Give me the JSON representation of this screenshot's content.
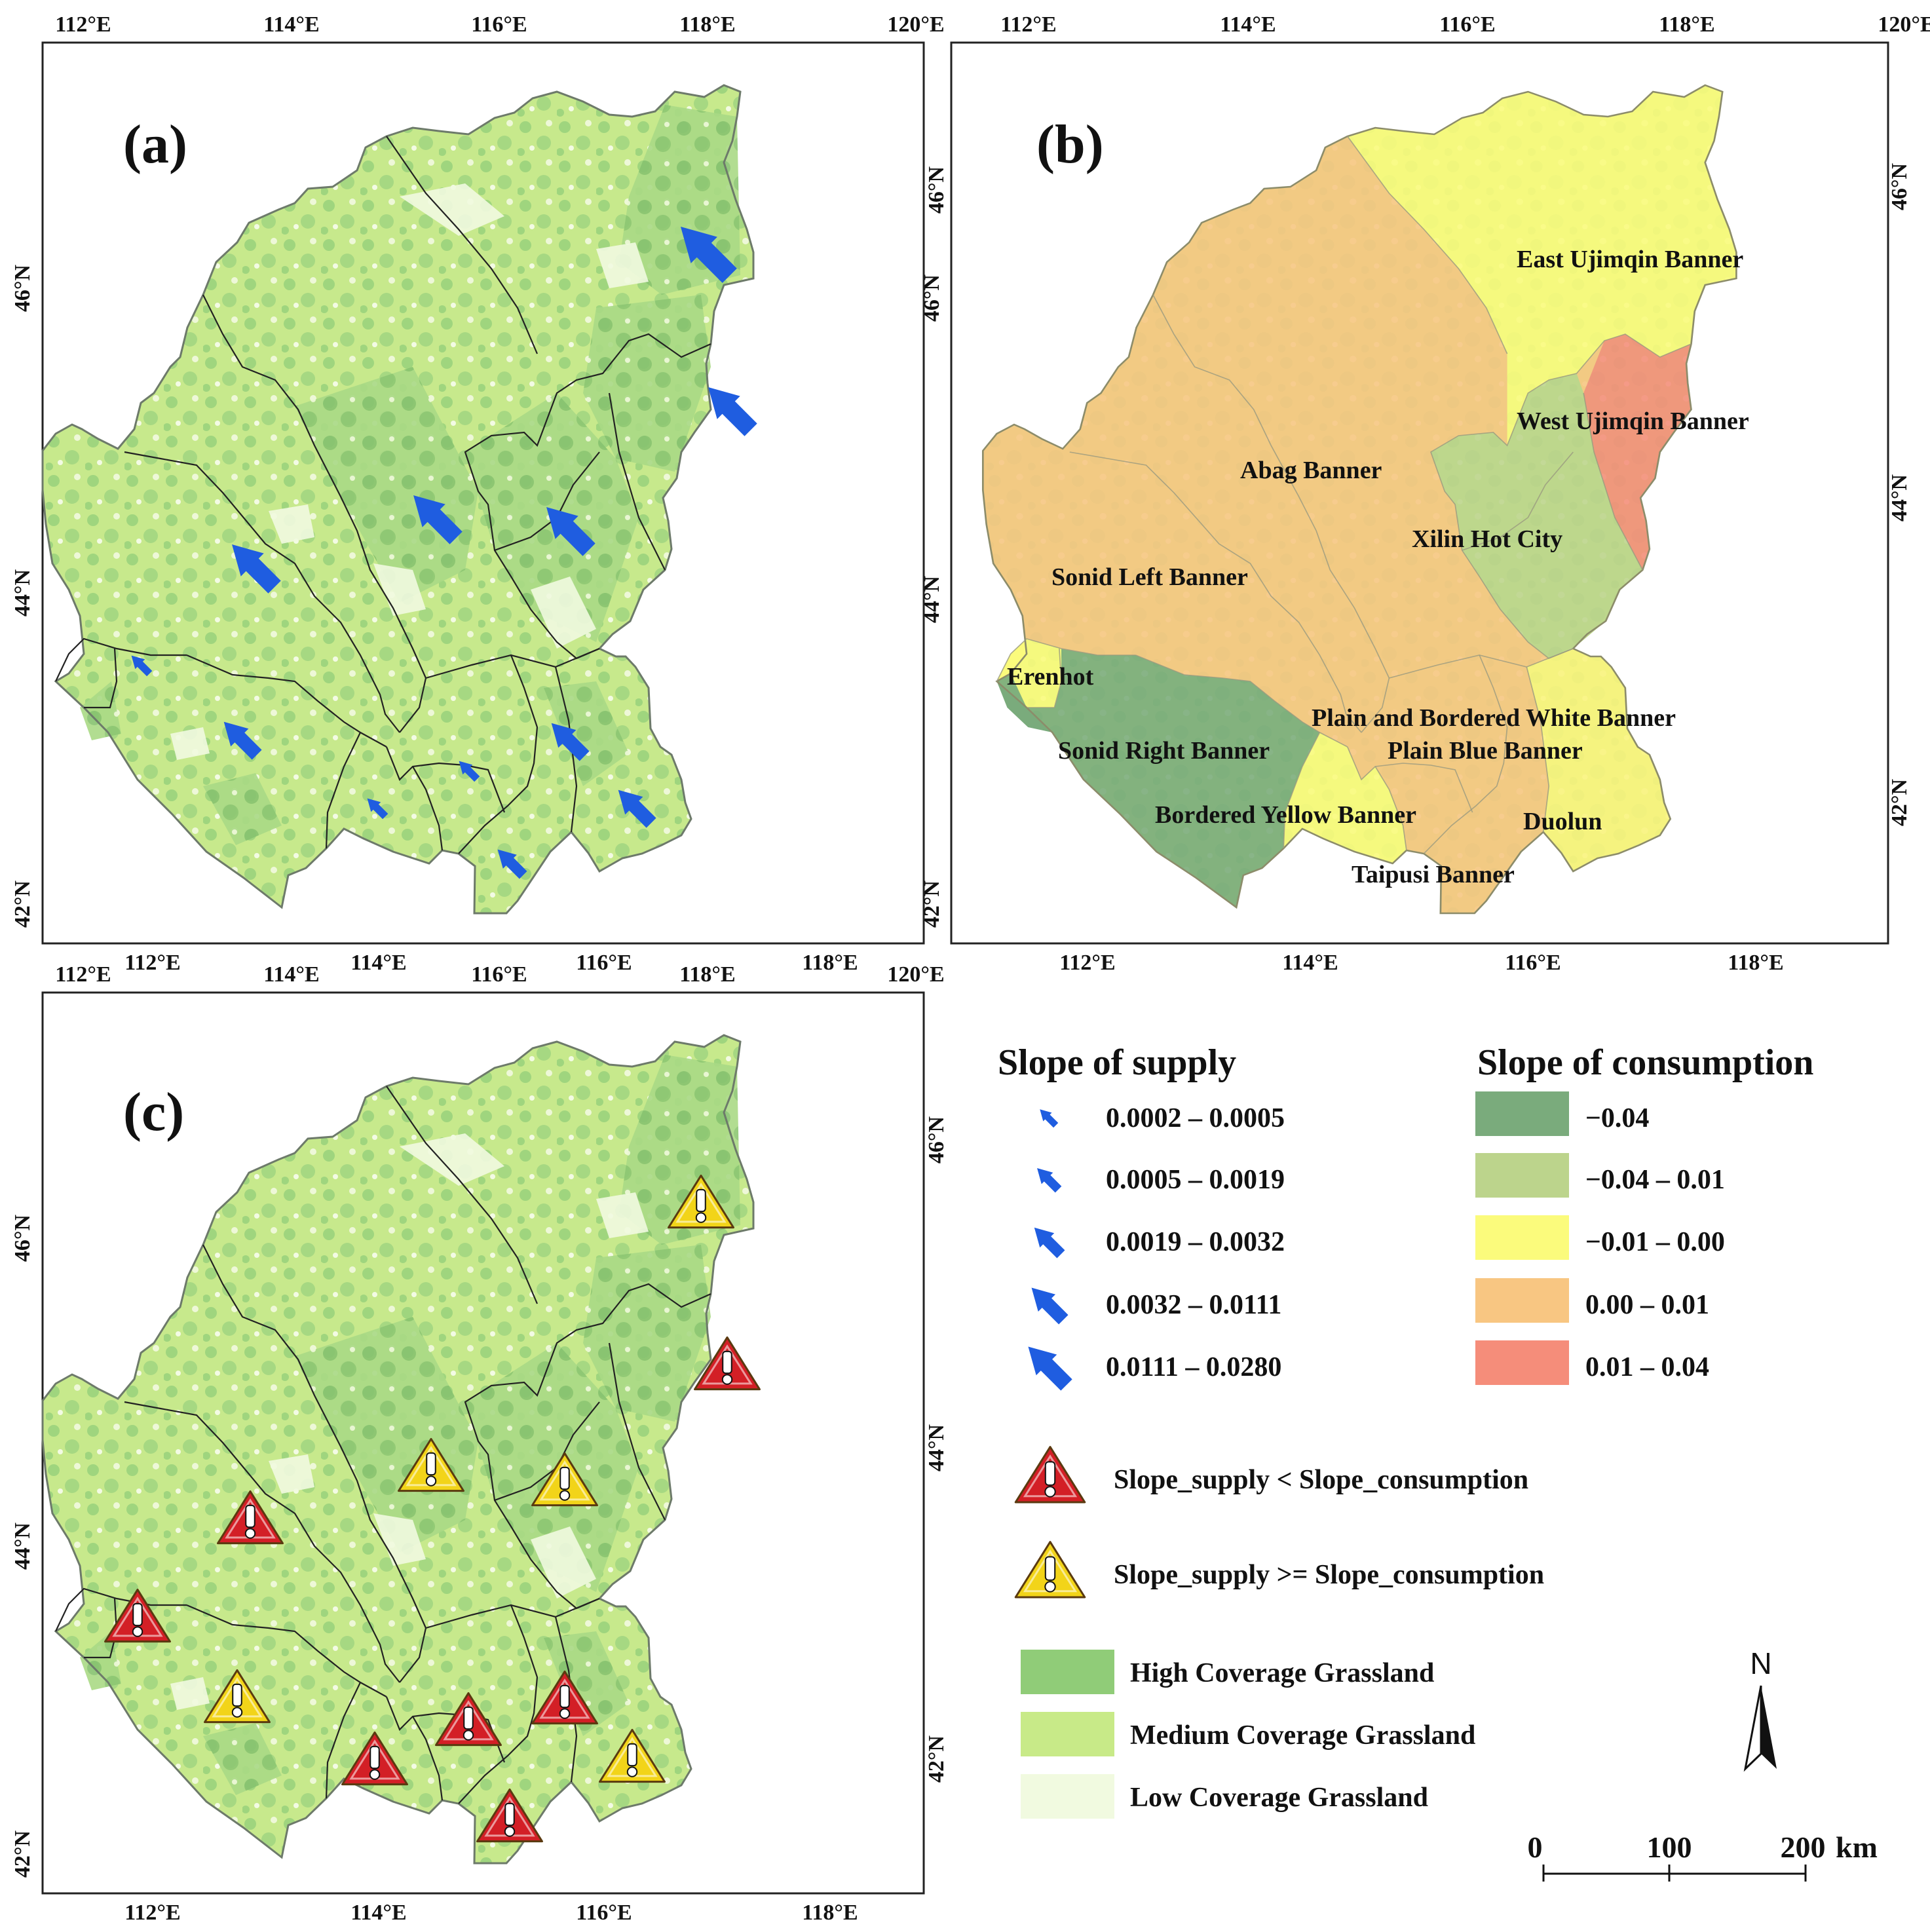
{
  "panels": {
    "a": {
      "letter": "(a)"
    },
    "b": {
      "letter": "(b)"
    },
    "c": {
      "letter": "(c)"
    }
  },
  "ticks": {
    "lon_a_top": [
      "112°E",
      "114°E",
      "116°E",
      "118°E",
      "120°E"
    ],
    "lon_a_bottom": [
      "112°E",
      "114°E",
      "116°E",
      "118°E"
    ],
    "lat_a_left": [
      "46°N",
      "44°N",
      "42°N"
    ],
    "lat_a_right": [
      "46°N"
    ],
    "lon_b_top": [
      "112°E",
      "114°E",
      "116°E",
      "118°E",
      "120°E"
    ],
    "lon_b_bottom": [
      "112°E",
      "114°E",
      "116°E",
      "118°E"
    ],
    "lat_b_left": [
      "46°N",
      "44°N",
      "42°N"
    ],
    "lat_b_right": [
      "46°N",
      "44°N",
      "42°N"
    ],
    "lon_c_top": [
      "112°E",
      "114°E",
      "116°E",
      "118°E",
      "120°E"
    ],
    "lon_c_bottom": [
      "112°E",
      "114°E",
      "116°E",
      "118°E"
    ],
    "lat_c_left": [
      "46°N",
      "44°N",
      "42°N"
    ],
    "lat_c_right": [
      "46°N",
      "44°N",
      "42°N"
    ]
  },
  "regions": {
    "east_ujimqin": "East Ujimqin Banner",
    "west_ujimqin": "West Ujimqin Banner",
    "abag": "Abag Banner",
    "xilinhot": "Xilin Hot City",
    "sonid_left": "Sonid Left Banner",
    "erenhot": "Erenhot",
    "sonid_right": "Sonid Right Banner",
    "plain_bordered_white": "Plain and Bordered White Banner",
    "plain_blue": "Plain Blue Banner",
    "bordered_yellow": "Bordered Yellow Banner",
    "duolun": "Duolun",
    "taipusi": "Taipusi Banner"
  },
  "legend": {
    "supply_title": "Slope of supply",
    "supply_classes": [
      "0.0002 – 0.0005",
      "0.0005 – 0.0019",
      "0.0019 – 0.0032",
      "0.0032 – 0.0111",
      "0.0111 – 0.0280"
    ],
    "consumption_title": "Slope of consumption",
    "consumption_classes": [
      "−0.04",
      "−0.04 – 0.01",
      "−0.01 – 0.00",
      "0.00 – 0.01",
      "0.01 – 0.04"
    ],
    "consumption_colors": [
      "#7aab7c",
      "#bcd48c",
      "#fbfb7c",
      "#f8c682",
      "#f58d7a"
    ],
    "warn_red": "Slope_supply < Slope_consumption",
    "warn_yellow": "Slope_supply >= Slope_consumption",
    "grass_high": "High Coverage Grassland",
    "grass_medium": "Medium Coverage Grassland",
    "grass_low": "Low Coverage Grassland",
    "grass_colors": [
      "#90cc78",
      "#c8ea88",
      "#f1fae0"
    ],
    "north": "N",
    "scale": [
      "0",
      "100",
      "200",
      "km"
    ]
  },
  "colors": {
    "arrow": "#1f5de0",
    "warn_red": "#d31f26",
    "warn_yellow": "#f2d419"
  },
  "icons": {
    "arrow": "arrow-up-right-icon",
    "warning": "warning-triangle-icon",
    "north": "north-arrow-icon"
  }
}
